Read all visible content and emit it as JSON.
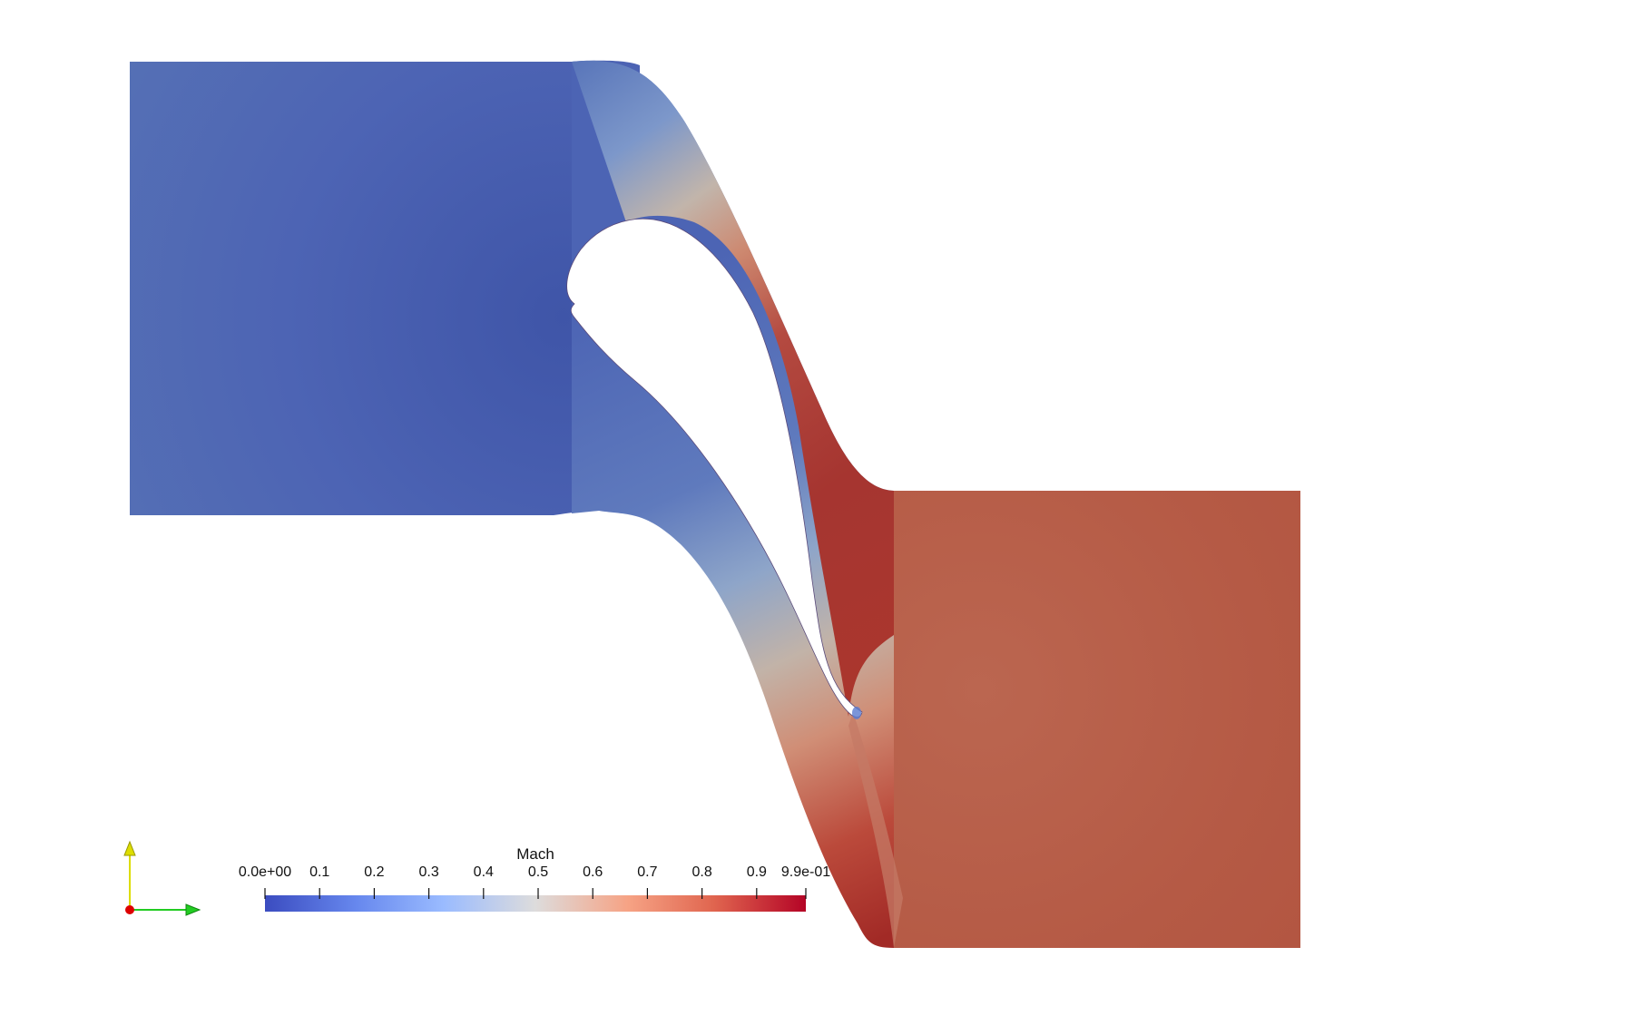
{
  "scene": {
    "field_name": "Mach",
    "colormap": [
      "#3b4cc0",
      "#6f92f3",
      "#aac7fd",
      "#dddcdc",
      "#f7b89c",
      "#e7745b",
      "#b40426"
    ],
    "blade_color": "#ffffff",
    "background": "#ffffff"
  },
  "colorbar": {
    "title": "Mach",
    "range": [
      0.0,
      0.99
    ],
    "ticks": [
      {
        "value": 0.0,
        "label": "0.0e+00"
      },
      {
        "value": 0.1,
        "label": "0.1"
      },
      {
        "value": 0.2,
        "label": "0.2"
      },
      {
        "value": 0.3,
        "label": "0.3"
      },
      {
        "value": 0.4,
        "label": "0.4"
      },
      {
        "value": 0.5,
        "label": "0.5"
      },
      {
        "value": 0.6,
        "label": "0.6"
      },
      {
        "value": 0.7,
        "label": "0.7"
      },
      {
        "value": 0.8,
        "label": "0.8"
      },
      {
        "value": 0.9,
        "label": "0.9"
      },
      {
        "value": 0.99,
        "label": "9.9e-01"
      }
    ]
  },
  "orientation_axes": {
    "x_color": "#22cc22",
    "y_color": "#dddd00",
    "z_color": "#dd0000"
  }
}
